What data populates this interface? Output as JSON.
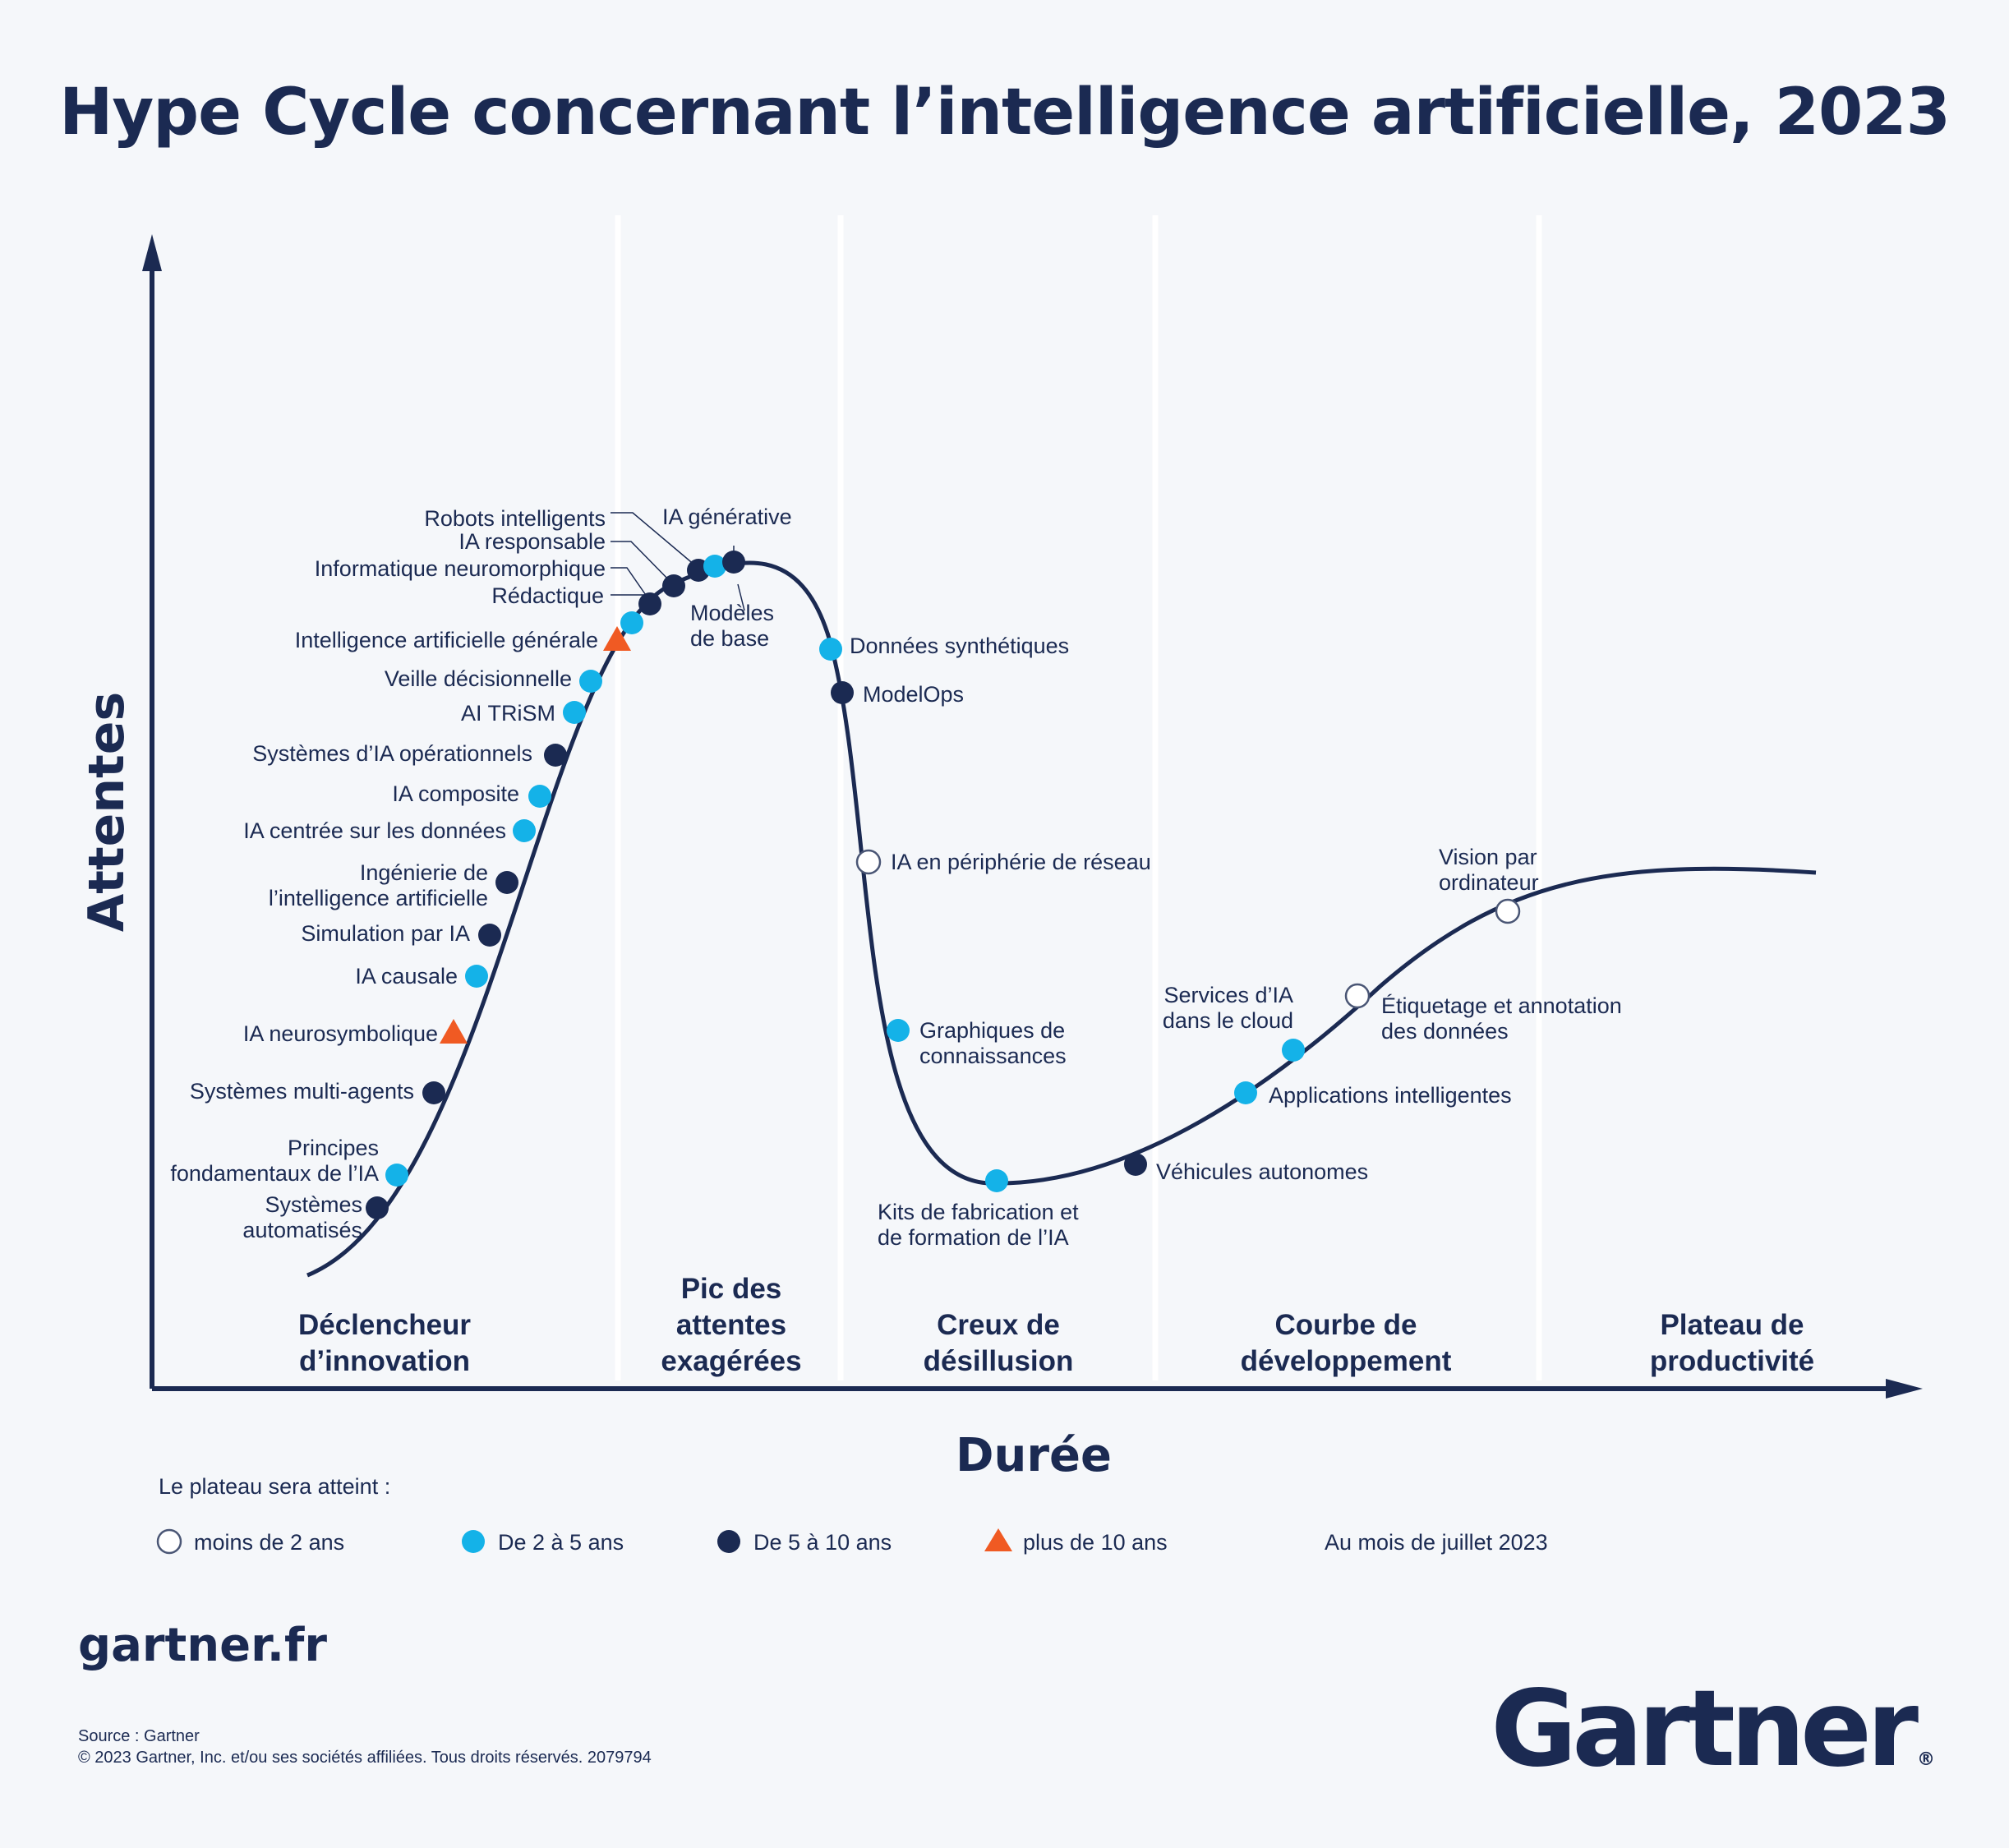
{
  "title": "Hype Cycle concernant l’intelligence artificielle, 2023",
  "site": "gartner.fr",
  "source_line": "Source : Gartner",
  "copyright_line": "© 2023 Gartner, Inc. et/ou ses sociétés affiliées. Tous droits réservés. 2079794",
  "logo": "Gartner",
  "colors": {
    "navy": "#1b2a52",
    "cyan": "#14b2e8",
    "orange": "#f05a23",
    "white": "#ffffff"
  },
  "chart_data": {
    "type": "scatter",
    "ylabel": "Attentes",
    "xlabel": "Durée",
    "phases": [
      "Déclencheur d’innovation",
      "Pic des attentes exagérées",
      "Creux de désillusion",
      "Courbe de développement",
      "Plateau de productivité"
    ],
    "legend_title": "Le plateau sera atteint :",
    "legend": [
      {
        "category": "lt2",
        "label": "moins de 2 ans",
        "shape": "circle-open"
      },
      {
        "category": "2to5",
        "label": "De 2 à 5 ans",
        "shape": "circle-cyan"
      },
      {
        "category": "5to10",
        "label": "De 5 à 10 ans",
        "shape": "circle-navy"
      },
      {
        "category": "gt10",
        "label": "plus de 10 ans",
        "shape": "triangle-orange"
      }
    ],
    "as_of": "Au mois de juillet 2023",
    "points": [
      {
        "label": "Systèmes automatisés",
        "category": "5to10"
      },
      {
        "label": "Principes fondamentaux de l’IA",
        "category": "2to5"
      },
      {
        "label": "Systèmes multi-agents",
        "category": "5to10"
      },
      {
        "label": "IA neurosymbolique",
        "category": "gt10"
      },
      {
        "label": "IA causale",
        "category": "2to5"
      },
      {
        "label": "Simulation par IA",
        "category": "5to10"
      },
      {
        "label": "Ingénierie de l’intelligence artificielle",
        "category": "5to10"
      },
      {
        "label": "IA centrée sur les données",
        "category": "2to5"
      },
      {
        "label": "IA composite",
        "category": "2to5"
      },
      {
        "label": "Systèmes d’IA opérationnels",
        "category": "5to10"
      },
      {
        "label": "AI TRiSM",
        "category": "2to5"
      },
      {
        "label": "Veille décisionnelle",
        "category": "2to5"
      },
      {
        "label": "Intelligence artificielle générale",
        "category": "gt10"
      },
      {
        "label": "Rédactique",
        "category": "2to5"
      },
      {
        "label": "Informatique neuromorphique",
        "category": "5to10"
      },
      {
        "label": "IA responsable",
        "category": "5to10"
      },
      {
        "label": "Robots intelligents",
        "category": "5to10"
      },
      {
        "label": "Modèles de base",
        "category": "2to5"
      },
      {
        "label": "IA générative",
        "category": "5to10"
      },
      {
        "label": "Données synthétiques",
        "category": "2to5"
      },
      {
        "label": "ModelOps",
        "category": "5to10"
      },
      {
        "label": "IA en périphérie de réseau",
        "category": "lt2"
      },
      {
        "label": "Graphiques de connaissances",
        "category": "2to5"
      },
      {
        "label": "Kits de fabrication et de formation de l’IA",
        "category": "2to5"
      },
      {
        "label": "Véhicules autonomes",
        "category": "5to10"
      },
      {
        "label": "Applications intelligentes",
        "category": "2to5"
      },
      {
        "label": "Services d’IA dans le cloud",
        "category": "2to5"
      },
      {
        "label": "Étiquetage et annotation des données",
        "category": "lt2"
      },
      {
        "label": "Vision par ordinateur",
        "category": "lt2"
      }
    ]
  }
}
